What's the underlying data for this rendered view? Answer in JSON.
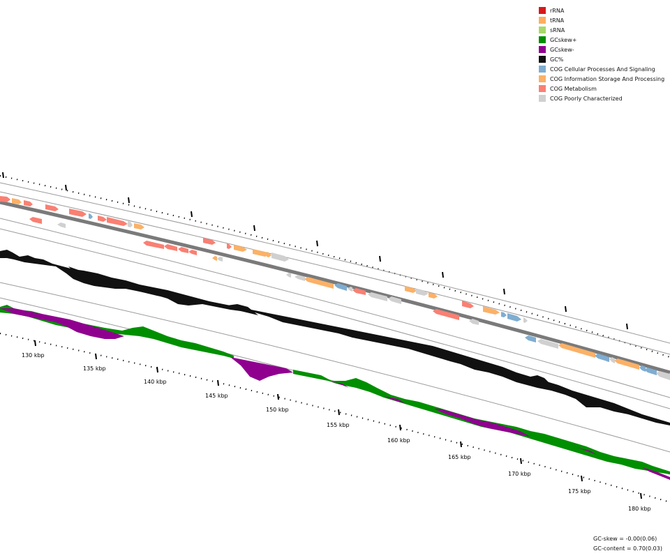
{
  "legend": [
    {
      "label": "rRNA",
      "color": "#d7191c"
    },
    {
      "label": "tRNA",
      "color": "#fdae61"
    },
    {
      "label": "sRNA",
      "color": "#a6d96a"
    },
    {
      "label": "GCskew+",
      "color": "#008f00"
    },
    {
      "label": "GCskew-",
      "color": "#8f008f"
    },
    {
      "label": "GC%",
      "color": "#111111"
    },
    {
      "label": "COG Cellular Processes And Signaling",
      "color": "#7fadd1"
    },
    {
      "label": "COG Information Storage And Processing",
      "color": "#fbb167"
    },
    {
      "label": "COG Metabolism",
      "color": "#f98073"
    },
    {
      "label": "COG Poorly Characterized",
      "color": "#d0d0d0"
    }
  ],
  "axis": {
    "tick_labels": [
      "130 kbp",
      "135 kbp",
      "140 kbp",
      "145 kbp",
      "150 kbp",
      "155 kbp",
      "160 kbp",
      "165 kbp",
      "170 kbp",
      "175 kbp",
      "180 kbp"
    ]
  },
  "stats": {
    "gc_skew": "GC-skew = -0.00(0.06)",
    "gc_content": "GC-content = 0.70(0.03)"
  }
}
